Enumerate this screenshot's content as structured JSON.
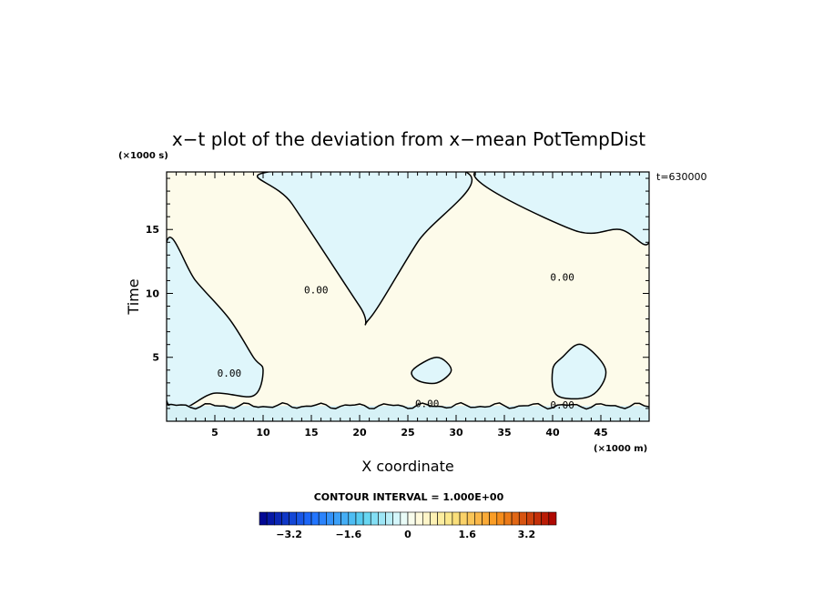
{
  "chart_data": {
    "type": "heatmap",
    "title": "x−t plot of the deviation from x−mean PotTempDist",
    "xlabel": "X coordinate",
    "ylabel": "Time",
    "x_unit": "(×1000 m)",
    "y_unit": "(×1000 s)",
    "time_stamp": "t=630000",
    "xlim": [
      0,
      50
    ],
    "ylim": [
      0,
      19.5
    ],
    "x_ticks": [
      5,
      10,
      15,
      20,
      25,
      30,
      35,
      40,
      45
    ],
    "y_ticks": [
      5,
      10,
      15
    ],
    "contour_label": "0.00",
    "contour_interval_text": "CONTOUR INTERVAL = 1.000E+00",
    "colorbar": {
      "min": -4.0,
      "max": 4.0,
      "step": 0.2,
      "tick_values": [
        -3.2,
        -1.6,
        0,
        1.6,
        3.2
      ],
      "tick_labels": [
        "−3.2",
        "−1.6",
        "0",
        "1.6",
        "3.2"
      ]
    },
    "regions": [
      {
        "sign": "negative",
        "value": -0.2,
        "color": "#dff6fb",
        "outline_t_per_x": [
          [
            0,
            14
          ],
          [
            3,
            11
          ],
          [
            6.5,
            8
          ],
          [
            9,
            5
          ],
          [
            10,
            4
          ],
          [
            9,
            2
          ],
          [
            5,
            2.2
          ],
          [
            0,
            1.6
          ]
        ]
      },
      {
        "sign": "negative",
        "value": -0.2,
        "color": "#dff6fb",
        "outline_t_per_x": [
          [
            10.5,
            19.5
          ],
          [
            13,
            17
          ],
          [
            20,
            9
          ],
          [
            21,
            8
          ],
          [
            26,
            14
          ],
          [
            31,
            19.5
          ]
        ]
      },
      {
        "sign": "negative",
        "value": -0.2,
        "color": "#dff6fb",
        "outline_t_per_x": [
          [
            32,
            19.5
          ],
          [
            42,
            15
          ],
          [
            47,
            15
          ],
          [
            50,
            14
          ],
          [
            50,
            19.5
          ]
        ]
      },
      {
        "sign": "negative",
        "value": -0.2,
        "color": "#dff6fb",
        "outline_t_per_x": [
          [
            40,
            4
          ],
          [
            41,
            5
          ],
          [
            43,
            6
          ],
          [
            45.5,
            4
          ],
          [
            44,
            2
          ],
          [
            40.5,
            2
          ]
        ]
      },
      {
        "sign": "negative",
        "value": -0.2,
        "color": "#dff6fb",
        "outline_t_per_x": [
          [
            25.5,
            4
          ],
          [
            28,
            5
          ],
          [
            29.5,
            4
          ],
          [
            28,
            3
          ],
          [
            26,
            3.2
          ]
        ]
      }
    ]
  }
}
